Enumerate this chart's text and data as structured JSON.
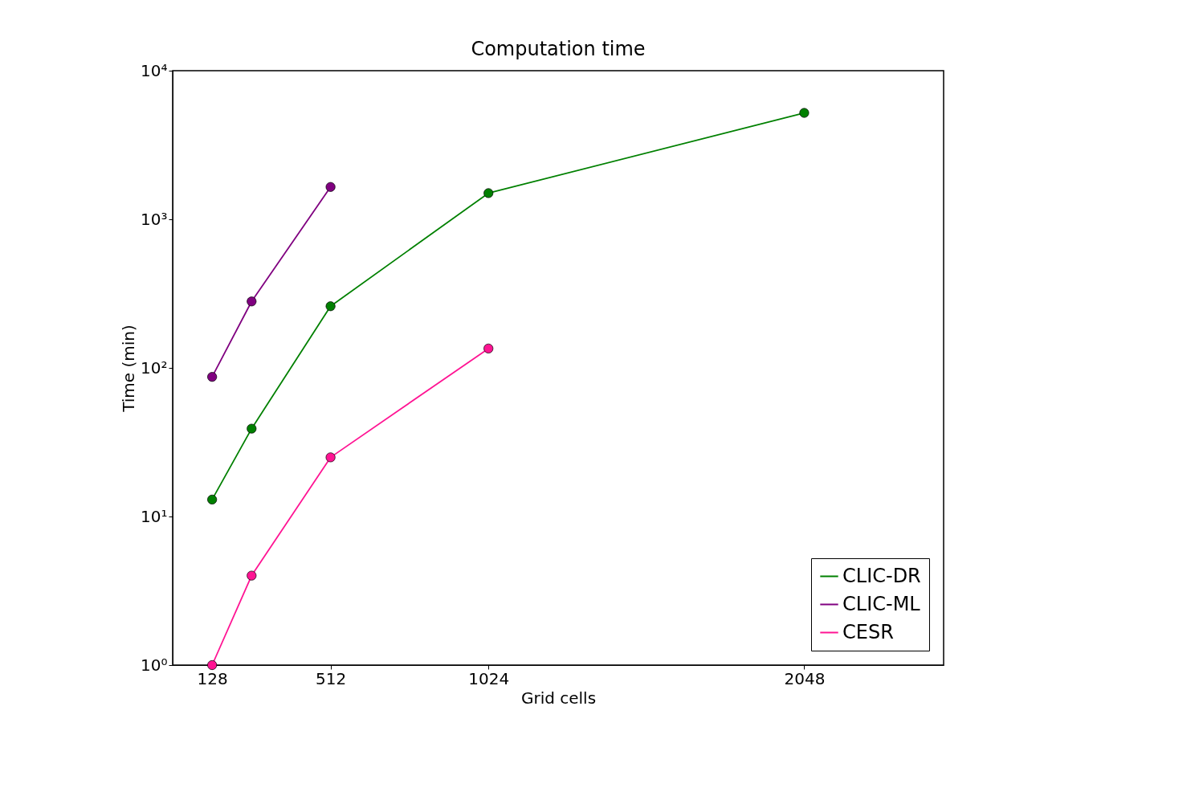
{
  "chart_data": {
    "type": "line",
    "title": "Computation time",
    "xlabel": "Grid cells",
    "ylabel": "Time (min)",
    "x": [
      128,
      256,
      512,
      1024,
      2048
    ],
    "series": [
      {
        "name": "CLIC-DR",
        "color": "#008000",
        "values": [
          13,
          39,
          260,
          1500,
          5200
        ]
      },
      {
        "name": "CLIC-ML",
        "color": "#800080",
        "values": [
          87,
          280,
          1650,
          null,
          null
        ]
      },
      {
        "name": "CESR",
        "color": "#ff1493",
        "values": [
          1,
          4,
          25,
          135,
          null
        ]
      }
    ],
    "xlim": [
      0,
      2500
    ],
    "xticks": [
      128,
      512,
      1024,
      2048
    ],
    "ylim": [
      1,
      10000
    ],
    "yticks": [
      {
        "value": 1,
        "label": "10⁰"
      },
      {
        "value": 10,
        "label": "10¹"
      },
      {
        "value": 100,
        "label": "10²"
      },
      {
        "value": 1000,
        "label": "10³"
      },
      {
        "value": 10000,
        "label": "10⁴"
      }
    ],
    "log": true,
    "grid": false,
    "legend": "bottom right",
    "marker": "circle",
    "line_style": "solid"
  }
}
